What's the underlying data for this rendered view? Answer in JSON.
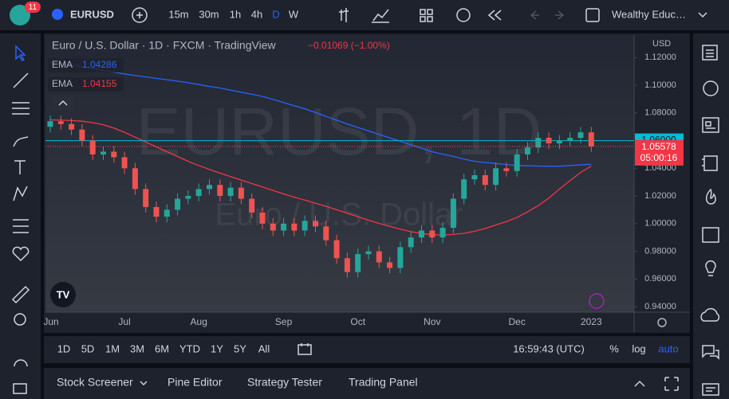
{
  "top_bar": {
    "badge": "11",
    "symbol": "EURUSD",
    "intervals": [
      "15m",
      "30m",
      "1h",
      "4h",
      "D",
      "W"
    ],
    "layout_name": "Wealthy Educ…"
  },
  "chart_data": {
    "type": "candlestick",
    "title": "Euro / U.S. Dollar · 1D · FXCM · TradingView",
    "change": "−0.01069 (−1.00%)",
    "watermark": "EURUSD, 1D",
    "watermark_subtitle": "Euro / U.S. Dollar",
    "currency": "USD",
    "countdown": "05:00:16",
    "up_color": "#26a69a",
    "down_color": "#ef5350",
    "categories": [
      "Jun",
      null,
      null,
      null,
      null,
      null,
      null,
      "Jul",
      null,
      null,
      null,
      null,
      null,
      null,
      "Aug",
      null,
      null,
      null,
      null,
      null,
      null,
      null,
      "Sep",
      null,
      null,
      null,
      null,
      null,
      null,
      "Oct",
      null,
      null,
      null,
      null,
      null,
      null,
      "Nov",
      null,
      null,
      null,
      null,
      null,
      null,
      null,
      "Dec",
      null,
      null,
      null,
      null,
      null,
      null,
      "2023"
    ],
    "open": [
      1.07,
      1.074,
      1.072,
      1.068,
      1.06,
      1.05,
      1.052,
      1.048,
      1.04,
      1.025,
      1.012,
      1.005,
      1.01,
      1.018,
      1.02,
      1.025,
      1.028,
      1.02,
      1.026,
      1.018,
      1.008,
      1.0,
      0.995,
      1.0,
      0.995,
      1.002,
      0.998,
      0.988,
      0.975,
      0.965,
      0.978,
      0.98,
      0.972,
      0.968,
      0.983,
      0.99,
      0.995,
      0.99,
      0.997,
      1.018,
      1.032,
      1.035,
      1.028,
      1.04,
      1.038,
      1.05,
      1.055,
      1.062,
      1.058,
      1.06,
      1.062,
      1.066
    ],
    "high": [
      1.078,
      1.078,
      1.076,
      1.072,
      1.064,
      1.056,
      1.056,
      1.052,
      1.044,
      1.029,
      1.016,
      1.014,
      1.022,
      1.024,
      1.029,
      1.032,
      1.032,
      1.03,
      1.03,
      1.022,
      1.012,
      1.004,
      1.004,
      1.004,
      1.006,
      1.006,
      1.002,
      0.992,
      0.979,
      0.982,
      0.984,
      0.984,
      0.976,
      0.987,
      0.994,
      0.999,
      0.999,
      1.001,
      1.022,
      1.036,
      1.039,
      1.039,
      1.044,
      1.044,
      1.054,
      1.059,
      1.066,
      1.066,
      1.064,
      1.066,
      1.07,
      1.07
    ],
    "low": [
      1.066,
      1.068,
      1.064,
      1.056,
      1.046,
      1.046,
      1.044,
      1.036,
      1.021,
      1.008,
      1.001,
      1.001,
      1.006,
      1.014,
      1.016,
      1.021,
      1.016,
      1.016,
      1.014,
      1.004,
      0.996,
      0.991,
      0.991,
      0.991,
      0.991,
      0.994,
      0.984,
      0.971,
      0.961,
      0.961,
      0.974,
      0.968,
      0.964,
      0.964,
      0.979,
      0.986,
      0.986,
      0.986,
      0.993,
      1.014,
      1.028,
      1.024,
      1.024,
      1.034,
      1.034,
      1.046,
      1.051,
      1.054,
      1.054,
      1.056,
      1.058,
      1.0518
    ],
    "close": [
      1.074,
      1.072,
      1.068,
      1.06,
      1.05,
      1.052,
      1.048,
      1.04,
      1.025,
      1.012,
      1.005,
      1.01,
      1.018,
      1.02,
      1.025,
      1.028,
      1.02,
      1.026,
      1.018,
      1.008,
      1.0,
      0.995,
      1.0,
      0.995,
      1.002,
      0.998,
      0.988,
      0.975,
      0.965,
      0.978,
      0.98,
      0.972,
      0.968,
      0.983,
      0.99,
      0.995,
      0.99,
      0.997,
      1.018,
      1.032,
      1.035,
      1.028,
      1.04,
      1.038,
      1.05,
      1.055,
      1.062,
      1.058,
      1.06,
      1.062,
      1.066,
      1.05578
    ],
    "series": [
      {
        "name": "EMA",
        "color": "#2962ff",
        "last_value": 1.04286,
        "values": [
          1.1165,
          1.1155,
          1.1145,
          1.1135,
          1.112,
          1.1108,
          1.1095,
          1.1082,
          1.107,
          1.106,
          1.105,
          1.104,
          1.103,
          1.1018,
          1.1005,
          1.0992,
          1.098,
          1.0965,
          1.095,
          1.0935,
          1.092,
          1.0898,
          1.0875,
          1.0852,
          1.083,
          1.0803,
          1.0775,
          1.0748,
          1.072,
          1.0695,
          1.067,
          1.0645,
          1.062,
          1.0595,
          1.057,
          1.0545,
          1.052,
          1.0502,
          1.0485,
          1.0467,
          1.045,
          1.0442,
          1.0435,
          1.0427,
          1.042,
          1.0418,
          1.0416,
          1.0415,
          1.0415,
          1.042,
          1.0425,
          1.0429
        ]
      },
      {
        "name": "EMA",
        "color": "#f23645",
        "last_value": 1.04155,
        "values": [
          1.075,
          1.0748,
          1.0745,
          1.074,
          1.073,
          1.0715,
          1.069,
          1.066,
          1.0625,
          1.059,
          1.0555,
          1.052,
          1.0485,
          1.045,
          1.042,
          1.0392,
          1.0365,
          1.034,
          1.0315,
          1.029,
          1.0265,
          1.024,
          1.0215,
          1.0192,
          1.017,
          1.0148,
          1.0125,
          1.01,
          1.0075,
          1.005,
          1.0025,
          1.0002,
          0.998,
          0.996,
          0.9942,
          0.9928,
          0.992,
          0.9918,
          0.9922,
          0.993,
          0.9945,
          0.9965,
          0.999,
          1.0015,
          1.0045,
          1.0085,
          1.013,
          1.0185,
          1.025,
          1.031,
          1.037,
          1.0416
        ]
      }
    ],
    "hline": {
      "value": 1.06,
      "label": "1.06000",
      "color": "#00bcd4"
    },
    "ylim": [
      0.936,
      1.134
    ],
    "yticks": [
      {
        "value": 1.12,
        "label": "1.12000"
      },
      {
        "value": 1.1,
        "label": "1.10000"
      },
      {
        "value": 1.08,
        "label": "1.08000"
      },
      {
        "value": 1.04,
        "label": "1.04000"
      },
      {
        "value": 1.02,
        "label": "1.02000"
      },
      {
        "value": 1.0,
        "label": "1.00000"
      },
      {
        "value": 0.98,
        "label": "0.98000"
      },
      {
        "value": 0.96,
        "label": "0.96000"
      },
      {
        "value": 0.94,
        "label": "0.94000"
      }
    ],
    "grid": false
  },
  "bottom_bar": {
    "ranges": [
      "1D",
      "5D",
      "1M",
      "3M",
      "6M",
      "YTD",
      "1Y",
      "5Y",
      "All"
    ],
    "clock": "16:59:43 (UTC)",
    "scale_options": [
      "%",
      "log",
      "auto"
    ]
  },
  "panel_tabs": [
    "Stock Screener",
    "Pine Editor",
    "Strategy Tester",
    "Trading Panel"
  ]
}
